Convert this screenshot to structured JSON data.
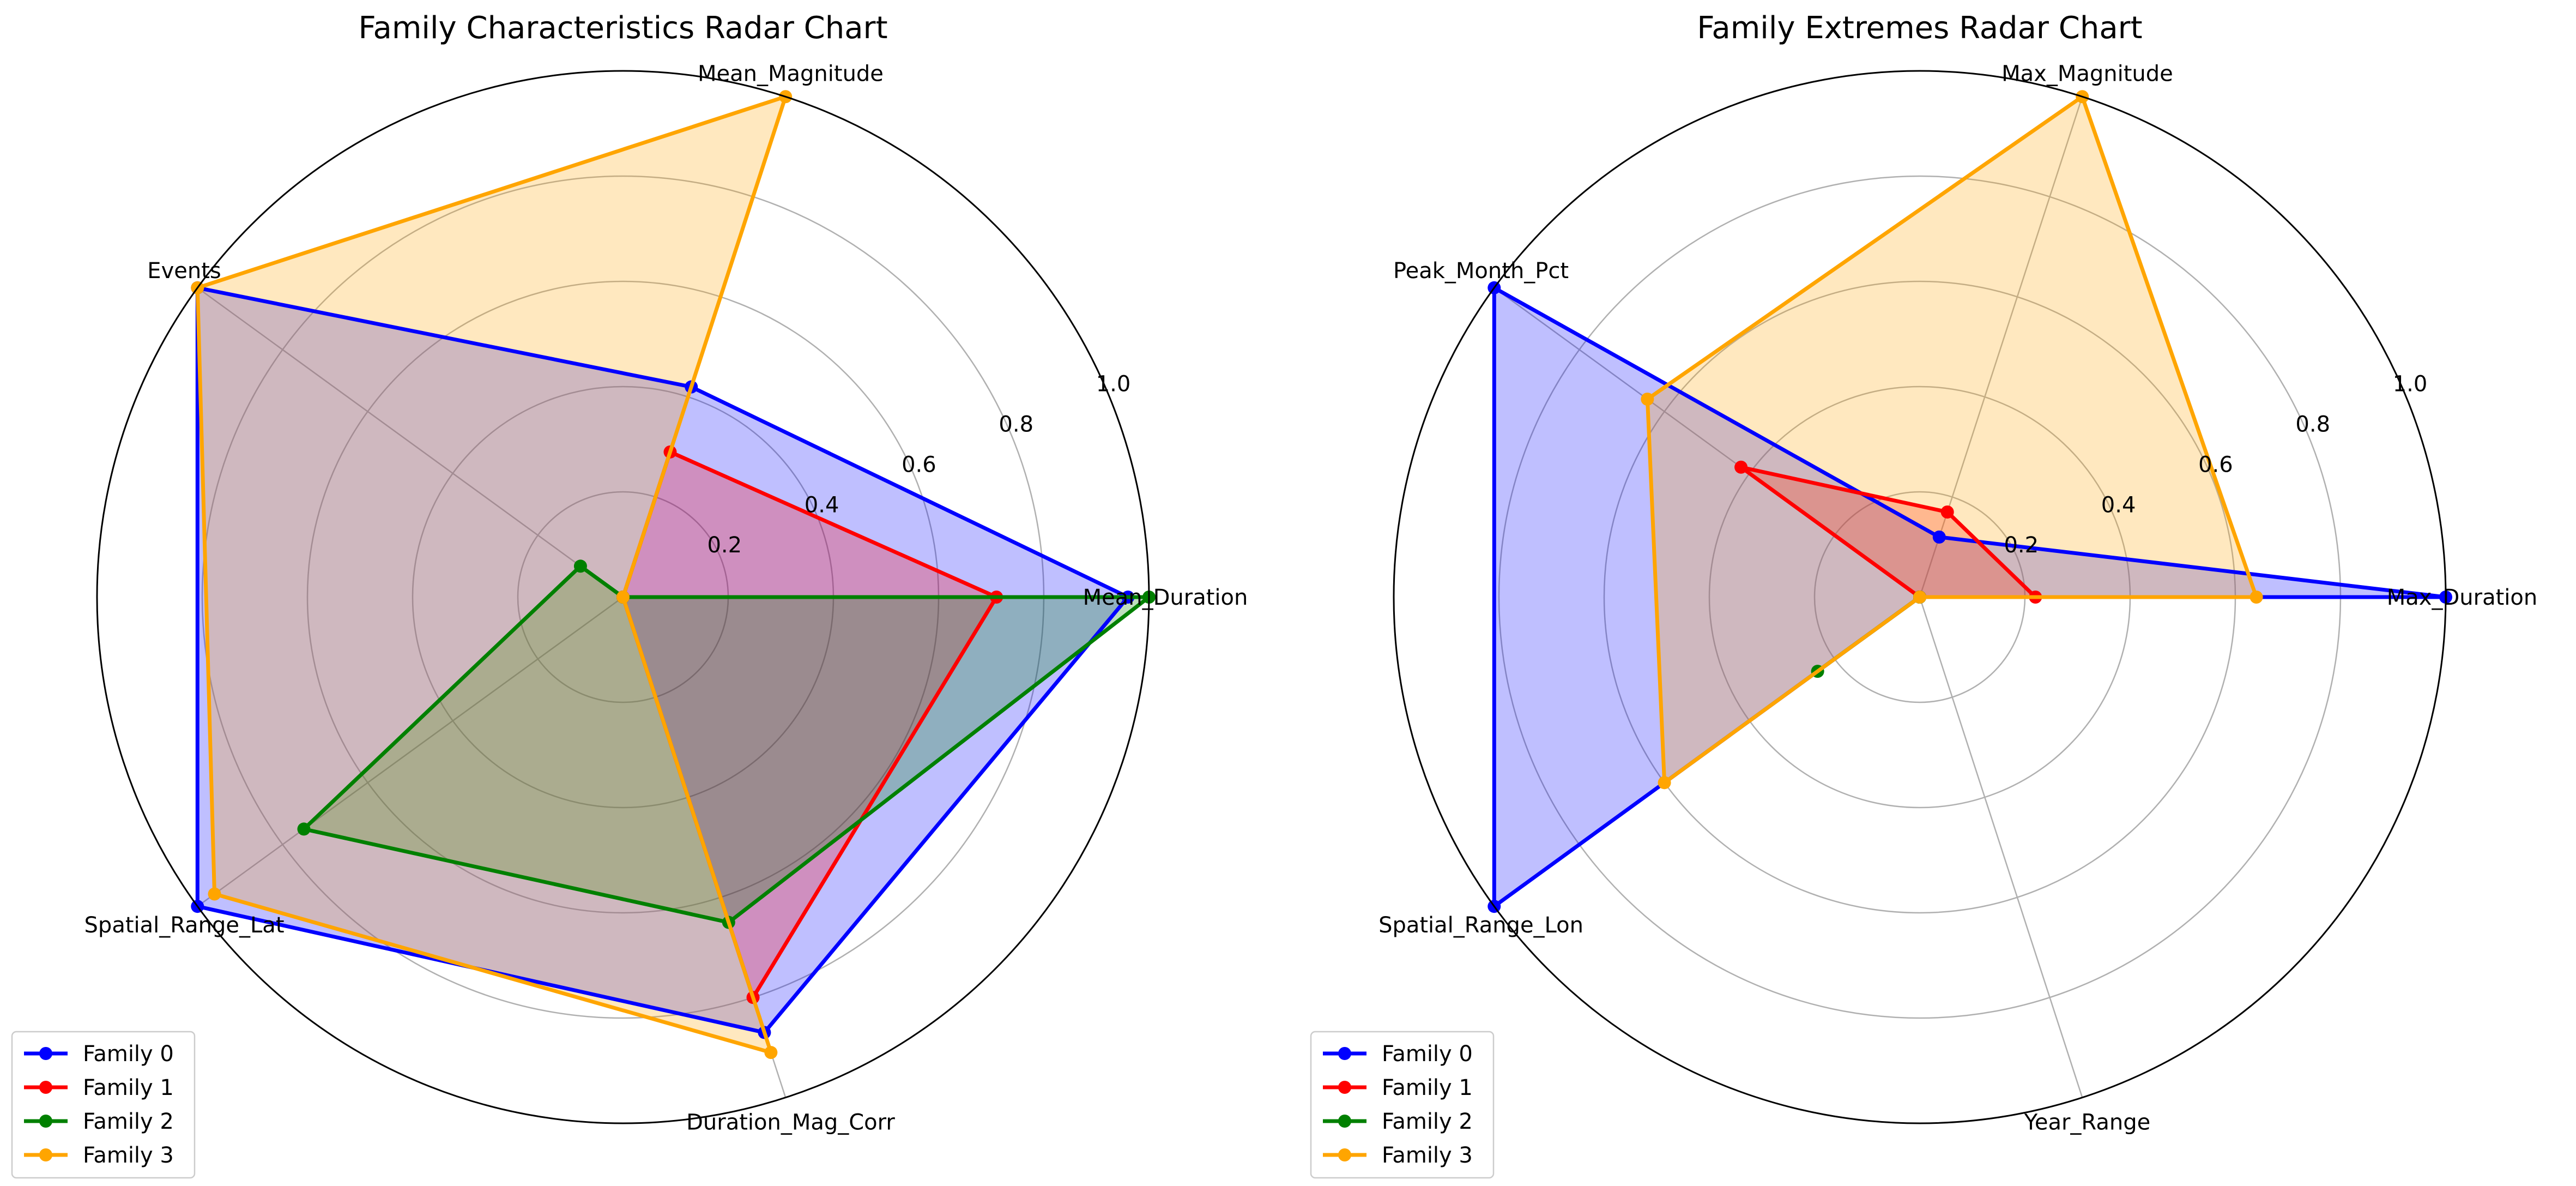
{
  "chart_data": [
    {
      "type": "radar",
      "title": "Family Characteristics Radar Chart",
      "axes": [
        "Mean_Duration",
        "Mean_Magnitude",
        "Events",
        "Spatial_Range_Lat",
        "Duration_Mag_Corr"
      ],
      "rlim": [
        0,
        1.0
      ],
      "rticks": [
        0.2,
        0.4,
        0.6,
        0.8,
        1.0
      ],
      "rtick_labels": [
        "0.2",
        "0.4",
        "0.6",
        "0.8",
        "1.0"
      ],
      "grid": true,
      "legend": "lower-left",
      "series": [
        {
          "name": "Family 0",
          "color": "#0000ff",
          "values": [
            0.96,
            0.42,
            1.0,
            1.0,
            0.87
          ]
        },
        {
          "name": "Family 1",
          "color": "#ff0000",
          "values": [
            0.71,
            0.29,
            0.0,
            0.0,
            0.8
          ]
        },
        {
          "name": "Family 2",
          "color": "#008000",
          "values": [
            1.0,
            0.0,
            0.1,
            0.75,
            0.65
          ]
        },
        {
          "name": "Family 3",
          "color": "#ffa500",
          "values": [
            0.0,
            1.0,
            1.0,
            0.96,
            0.91
          ]
        }
      ]
    },
    {
      "type": "radar",
      "title": "Family Extremes Radar Chart",
      "axes": [
        "Max_Duration",
        "Max_Magnitude",
        "Peak_Month_Pct",
        "Spatial_Range_Lon",
        "Year_Range"
      ],
      "rlim": [
        0,
        1.0
      ],
      "rticks": [
        0.2,
        0.4,
        0.6,
        0.8,
        1.0
      ],
      "rtick_labels": [
        "0.2",
        "0.4",
        "0.6",
        "0.8",
        "1.0"
      ],
      "grid": true,
      "legend": "lower-left",
      "series": [
        {
          "name": "Family 0",
          "color": "#0000ff",
          "values": [
            1.0,
            0.12,
            1.0,
            1.0,
            0.0
          ]
        },
        {
          "name": "Family 1",
          "color": "#ff0000",
          "values": [
            0.22,
            0.17,
            0.42,
            0.0,
            0.0
          ]
        },
        {
          "name": "Family 2",
          "color": "#008000",
          "values": [
            0.0,
            0.0,
            0.0,
            0.24,
            0.0
          ]
        },
        {
          "name": "Family 3",
          "color": "#ffa500",
          "values": [
            0.64,
            1.0,
            0.64,
            0.6,
            0.0
          ]
        }
      ]
    }
  ]
}
